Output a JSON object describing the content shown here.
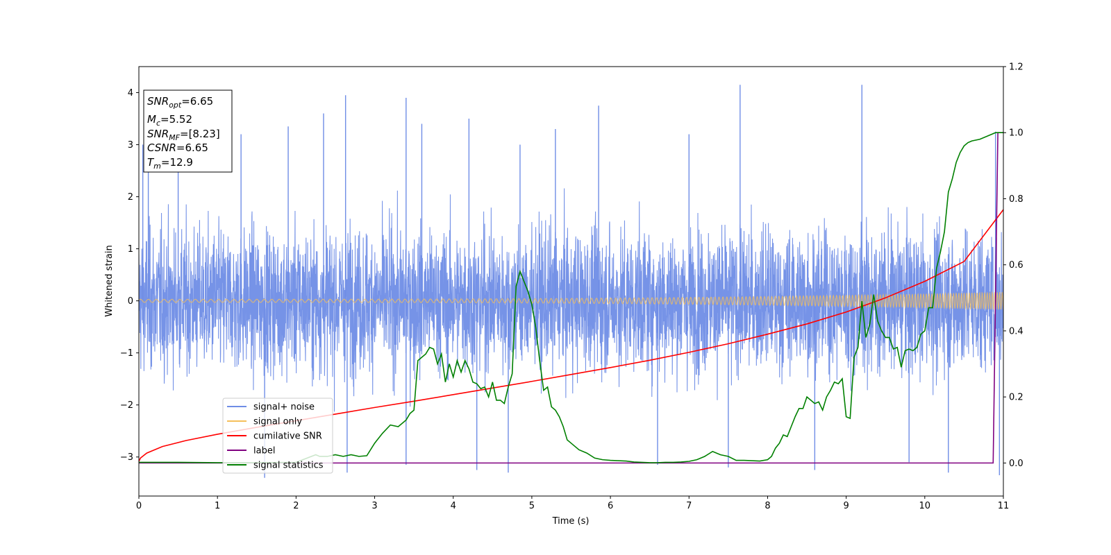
{
  "chart_data": {
    "type": "line",
    "xlabel": "Time (s)",
    "ylabel": "Whitened strain",
    "xlim": [
      0,
      11
    ],
    "ylim": [
      -3.75,
      4.5
    ],
    "y2lim": [
      -0.1,
      1.2
    ],
    "xticks": [
      0,
      1,
      2,
      3,
      4,
      5,
      6,
      7,
      8,
      9,
      10,
      11
    ],
    "yticks": [
      -3,
      -2,
      -1,
      0,
      1,
      2,
      3,
      4
    ],
    "y2ticks": [
      "0.0",
      "0.2",
      "0.4",
      "0.6",
      "0.8",
      "1.0",
      "1.2"
    ],
    "y2tick_values": [
      0.0,
      0.2,
      0.4,
      0.6,
      0.8,
      1.0,
      1.2
    ],
    "grid": false,
    "legend_position": "lower-left",
    "textbox": {
      "lines": [
        {
          "var": "SNR",
          "sub": "opt",
          "value": "=6.65"
        },
        {
          "var": "M",
          "sub": "c",
          "value": "=5.52"
        },
        {
          "var": "SNR",
          "sub": "MF",
          "value": "=[8.23]"
        },
        {
          "var": "CSNR",
          "sub": "",
          "value": "=6.65"
        },
        {
          "var": "T",
          "sub": "m",
          "value": "=12.9"
        }
      ]
    },
    "series": [
      {
        "name": "signal+ noise",
        "axis": "left",
        "color": "#6f8de6",
        "description": "noise band roughly within -2.7 to 2.7 with spikes up to 4.15 and down to -3.4",
        "spikes_up": [
          [
            0.05,
            3.0
          ],
          [
            0.12,
            3.1
          ],
          [
            0.5,
            3.2
          ],
          [
            1.3,
            3.2
          ],
          [
            1.9,
            3.35
          ],
          [
            2.35,
            3.6
          ],
          [
            2.63,
            3.95
          ],
          [
            3.4,
            3.9
          ],
          [
            3.6,
            3.4
          ],
          [
            4.2,
            3.5
          ],
          [
            4.85,
            3.0
          ],
          [
            5.3,
            3.3
          ],
          [
            5.85,
            3.75
          ],
          [
            7.0,
            3.2
          ],
          [
            7.65,
            4.15
          ],
          [
            9.2,
            4.15
          ],
          [
            10.9,
            3.25
          ]
        ],
        "spikes_down": [
          [
            1.6,
            -3.4
          ],
          [
            2.65,
            -3.3
          ],
          [
            3.4,
            -3.15
          ],
          [
            4.3,
            -3.25
          ],
          [
            4.7,
            -3.3
          ],
          [
            6.6,
            -3.15
          ],
          [
            7.5,
            -3.2
          ],
          [
            8.6,
            -3.25
          ],
          [
            9.8,
            -3.1
          ],
          [
            10.3,
            -3.3
          ],
          [
            10.95,
            -3.35
          ]
        ]
      },
      {
        "name": "signal only",
        "axis": "left",
        "color": "#f5bf5a",
        "description": "chirp oscillating around 0, amplitude growing from about 0.03 to 0.17"
      },
      {
        "name": "cumilative SNR",
        "axis": "right",
        "color": "#ff0000",
        "x": [
          0,
          0.02,
          0.1,
          0.3,
          0.6,
          1,
          1.5,
          2,
          2.5,
          3,
          3.5,
          4,
          4.5,
          5,
          5.5,
          6,
          6.5,
          7,
          7.5,
          8,
          8.5,
          9,
          9.5,
          10,
          10.5,
          11
        ],
        "y": [
          0.005,
          0.015,
          0.03,
          0.05,
          0.068,
          0.087,
          0.108,
          0.128,
          0.148,
          0.168,
          0.187,
          0.207,
          0.227,
          0.247,
          0.268,
          0.289,
          0.311,
          0.335,
          0.361,
          0.39,
          0.421,
          0.457,
          0.5,
          0.55,
          0.61,
          0.767
        ]
      },
      {
        "name": "label",
        "axis": "right",
        "color": "#800080",
        "x": [
          0,
          10.87,
          10.93,
          11
        ],
        "y": [
          0,
          0,
          1,
          1
        ]
      },
      {
        "name": "signal statistics",
        "axis": "right",
        "color": "#008000",
        "x": [
          0,
          0.5,
          1,
          1.5,
          2,
          2.25,
          2.3,
          2.4,
          2.5,
          2.6,
          2.7,
          2.8,
          2.9,
          3.0,
          3.1,
          3.2,
          3.3,
          3.4,
          3.45,
          3.5,
          3.55,
          3.6,
          3.65,
          3.7,
          3.75,
          3.8,
          3.85,
          3.9,
          3.95,
          4.0,
          4.05,
          4.1,
          4.15,
          4.2,
          4.25,
          4.3,
          4.35,
          4.4,
          4.45,
          4.5,
          4.55,
          4.6,
          4.65,
          4.7,
          4.75,
          4.8,
          4.85,
          4.9,
          4.95,
          5.0,
          5.05,
          5.1,
          5.15,
          5.2,
          5.25,
          5.3,
          5.35,
          5.4,
          5.45,
          5.5,
          5.6,
          5.7,
          5.8,
          5.9,
          6.0,
          6.1,
          6.2,
          6.3,
          6.4,
          6.5,
          6.6,
          6.7,
          6.8,
          6.9,
          7.0,
          7.1,
          7.2,
          7.3,
          7.4,
          7.5,
          7.6,
          7.7,
          7.8,
          7.9,
          8.0,
          8.05,
          8.1,
          8.15,
          8.2,
          8.25,
          8.3,
          8.35,
          8.4,
          8.45,
          8.5,
          8.55,
          8.6,
          8.65,
          8.7,
          8.75,
          8.8,
          8.85,
          8.9,
          8.95,
          9.0,
          9.05,
          9.1,
          9.15,
          9.2,
          9.25,
          9.3,
          9.35,
          9.4,
          9.45,
          9.5,
          9.55,
          9.6,
          9.65,
          9.7,
          9.75,
          9.8,
          9.85,
          9.9,
          9.95,
          10.0,
          10.05,
          10.1,
          10.15,
          10.2,
          10.25,
          10.3,
          10.35,
          10.4,
          10.45,
          10.5,
          10.55,
          10.6,
          10.7,
          10.8,
          10.9,
          11.0
        ],
        "y": [
          0.002,
          0.002,
          0.001,
          0.001,
          0.002,
          0.025,
          0.02,
          0.02,
          0.025,
          0.02,
          0.025,
          0.02,
          0.022,
          0.06,
          0.09,
          0.115,
          0.11,
          0.13,
          0.15,
          0.16,
          0.31,
          0.32,
          0.33,
          0.35,
          0.345,
          0.3,
          0.33,
          0.245,
          0.3,
          0.26,
          0.31,
          0.275,
          0.31,
          0.285,
          0.245,
          0.24,
          0.225,
          0.23,
          0.2,
          0.245,
          0.19,
          0.19,
          0.18,
          0.23,
          0.27,
          0.535,
          0.58,
          0.55,
          0.52,
          0.48,
          0.41,
          0.31,
          0.22,
          0.23,
          0.17,
          0.16,
          0.14,
          0.11,
          0.07,
          0.06,
          0.04,
          0.03,
          0.015,
          0.01,
          0.008,
          0.007,
          0.006,
          0.003,
          0.002,
          0.001,
          0.001,
          0.002,
          0.002,
          0.003,
          0.005,
          0.01,
          0.02,
          0.035,
          0.025,
          0.02,
          0.008,
          0.008,
          0.007,
          0.006,
          0.01,
          0.02,
          0.045,
          0.06,
          0.085,
          0.08,
          0.11,
          0.14,
          0.165,
          0.165,
          0.2,
          0.19,
          0.18,
          0.185,
          0.16,
          0.2,
          0.22,
          0.245,
          0.24,
          0.255,
          0.14,
          0.135,
          0.32,
          0.35,
          0.49,
          0.38,
          0.42,
          0.51,
          0.43,
          0.4,
          0.38,
          0.38,
          0.345,
          0.35,
          0.29,
          0.34,
          0.345,
          0.34,
          0.35,
          0.39,
          0.4,
          0.47,
          0.47,
          0.59,
          0.64,
          0.7,
          0.82,
          0.86,
          0.91,
          0.94,
          0.96,
          0.97,
          0.975,
          0.98,
          0.99,
          1.0,
          1.0
        ]
      }
    ]
  }
}
